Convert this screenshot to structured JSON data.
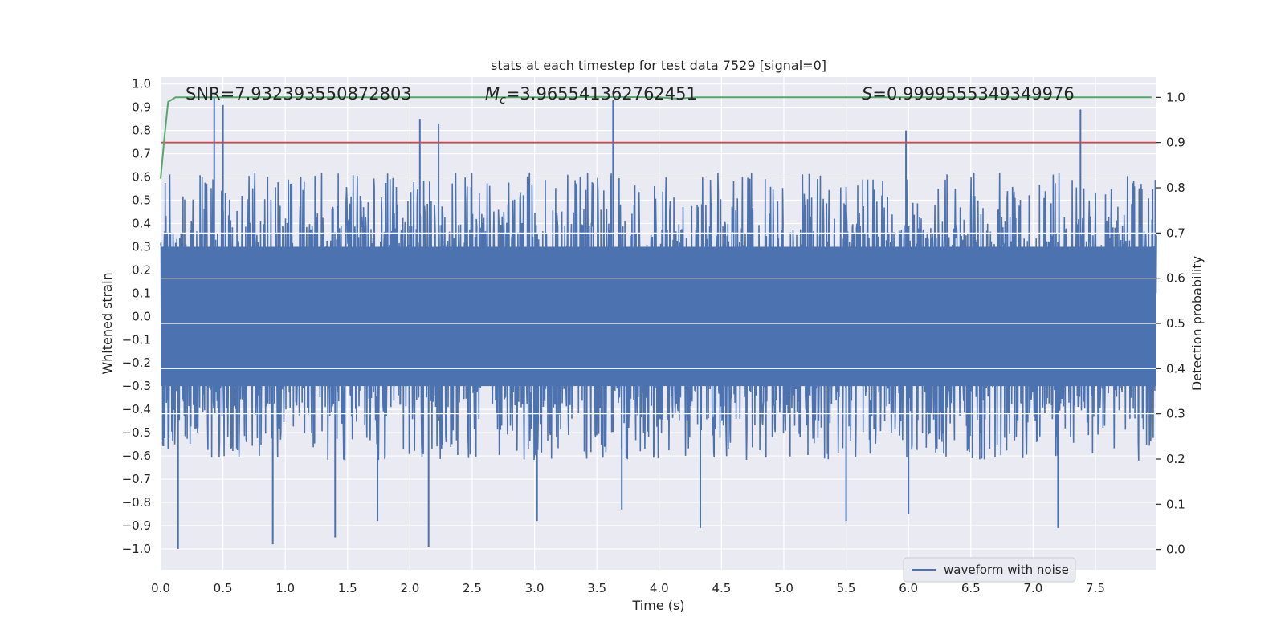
{
  "chart_data": {
    "type": "line",
    "title": "stats at each timestep for test data 7529 [signal=0]",
    "xlabel": "Time (s)",
    "ylabel": "Whitened strain",
    "y2label": "Detection probability",
    "xlim": [
      0.0,
      7.99
    ],
    "ylim": [
      -1.09,
      1.03
    ],
    "y2lim": [
      -0.045,
      1.045
    ],
    "x_ticks": [
      "0.0",
      "0.5",
      "1.0",
      "1.5",
      "2.0",
      "2.5",
      "3.0",
      "3.5",
      "4.0",
      "4.5",
      "5.0",
      "5.5",
      "6.0",
      "6.5",
      "7.0",
      "7.5"
    ],
    "y_ticks": [
      "1.0",
      "0.9",
      "0.8",
      "0.7",
      "0.6",
      "0.5",
      "0.4",
      "0.3",
      "0.2",
      "0.1",
      "0.0",
      "−0.1",
      "−0.2",
      "−0.3",
      "−0.4",
      "−0.5",
      "−0.6",
      "−0.7",
      "−0.8",
      "−0.9",
      "−1.0"
    ],
    "y2_ticks": [
      "1.0",
      "0.9",
      "0.8",
      "0.7",
      "0.6",
      "0.5",
      "0.4",
      "0.3",
      "0.2",
      "0.1",
      "0.0"
    ],
    "annotations": {
      "snr": "SNR=7.932393550872803",
      "mc_symbol": "M",
      "mc_sub": "c",
      "mc_value": "=3.965541362762451",
      "s_symbol": "S",
      "s_value": "=0.9999555349349976"
    },
    "threshold": 0.9,
    "legend": {
      "label": "waveform with noise",
      "placement": "lower-right"
    },
    "series": [
      {
        "name": "waveform with noise",
        "axis": "left",
        "style": "dense noise envelope",
        "typical_range": [
          -0.4,
          0.4
        ],
        "peak_times": [
          0.14,
          0.43,
          0.5,
          0.9,
          1.4,
          1.74,
          2.08,
          2.15,
          2.23,
          3.02,
          3.63,
          3.7,
          4.33,
          5.5,
          5.98,
          6.0,
          7.2,
          7.38
        ],
        "peak_values": [
          -1.0,
          0.94,
          0.91,
          -0.98,
          -0.95,
          -0.88,
          0.85,
          -0.99,
          0.83,
          -0.88,
          0.93,
          -0.83,
          -0.91,
          -0.88,
          0.8,
          -0.85,
          -0.91,
          0.89
        ]
      },
      {
        "axis": "right",
        "x": [
          0.0,
          0.03,
          0.06,
          0.12,
          0.5,
          3.3,
          3.5,
          4.0,
          4.15,
          4.3,
          7.95
        ],
        "values": [
          0.82,
          0.91,
          0.99,
          1.0,
          1.0,
          1.0,
          1.001,
          1.0,
          0.997,
          1.0,
          1.0
        ]
      }
    ],
    "colors": {
      "plot_bg": "#EAEAF2",
      "grid": "#FFFFFF",
      "waveform": "#4C72B0",
      "probability": "#55A868",
      "threshold": "#C44E52",
      "text": "#262626"
    },
    "grid": true
  }
}
